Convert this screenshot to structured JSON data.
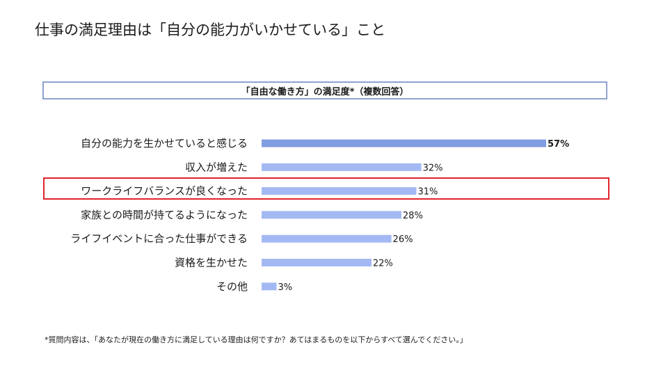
{
  "page": {
    "title": "仕事の満足理由は「自分の能力がいかせている」こと",
    "footnote": "*質問内容は、「あなたが現在の働き方に満足している理由は何ですか？あてはまるものを以下からすべて選んでください。」"
  },
  "chart_data": {
    "type": "bar",
    "orientation": "horizontal",
    "title": "「自由な働き方」の満足度*（複数回答）",
    "categories": [
      "自分の能力を生かせていると感じる",
      "収入が増えた",
      "ワークライフバランスが良くなった",
      "家族との時間が持てるようになった",
      "ライフイベントに合った仕事ができる",
      "資格を生かせた",
      "その他"
    ],
    "values": [
      57,
      32,
      31,
      28,
      26,
      22,
      3
    ],
    "value_labels": [
      "57%",
      "32%",
      "31%",
      "28%",
      "26%",
      "22%",
      "3%"
    ],
    "unit": "%",
    "xlim": [
      0,
      57
    ],
    "highlighted_category": "ワークライフバランスが良くなった",
    "emphasized_category": "自分の能力を生かせていると感じる",
    "grid": false,
    "colors": {
      "bar": "#a4b9f3",
      "bar_emphasis": "#7f9de0",
      "highlight_frame": "#e0232a",
      "title_box_border": "#8fa3cf"
    }
  }
}
